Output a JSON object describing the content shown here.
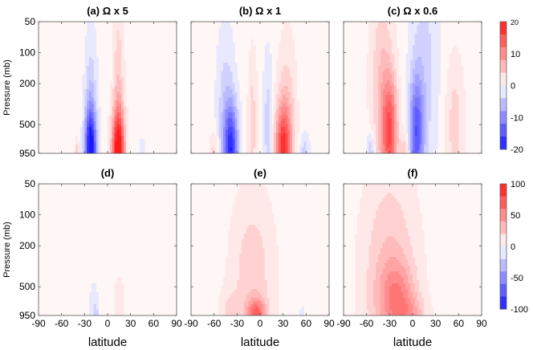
{
  "chart_data": {
    "type": "heatmap",
    "shared": {
      "xlabel": "latitude",
      "ylabel": "Pressure (mb)",
      "x_ticks": [
        "-90",
        "-60",
        "-30",
        "0",
        "30",
        "60",
        "90"
      ],
      "y_ticks": [
        "50",
        "100",
        "200",
        "500",
        "950"
      ],
      "xlim": [
        -90,
        90
      ],
      "ylim": [
        950,
        50
      ],
      "y_scale": "log"
    },
    "panels": [
      {
        "id": "a",
        "title": "(a) Ω x 5",
        "row": 0,
        "colorbar": 0,
        "blobs": [
          {
            "lat": -22,
            "p": 920,
            "width": 7,
            "depth": 0.9,
            "amp": -20
          },
          {
            "lat": -22,
            "p": 400,
            "width": 8,
            "depth": 1.8,
            "amp": -5
          },
          {
            "lat": 14,
            "p": 920,
            "width": 8,
            "depth": 0.9,
            "amp": 20
          },
          {
            "lat": 14,
            "p": 300,
            "width": 7,
            "depth": 2.2,
            "amp": 5
          },
          {
            "lat": -40,
            "p": 900,
            "width": 3,
            "depth": 0.3,
            "amp": 4
          },
          {
            "lat": 45,
            "p": 900,
            "width": 3,
            "depth": 0.3,
            "amp": -3
          }
        ]
      },
      {
        "id": "b",
        "title": "(b) Ω x 1",
        "row": 0,
        "colorbar": 0,
        "blobs": [
          {
            "lat": -38,
            "p": 900,
            "width": 9,
            "depth": 1.0,
            "amp": -17
          },
          {
            "lat": -45,
            "p": 350,
            "width": 12,
            "depth": 1.8,
            "amp": -4
          },
          {
            "lat": 30,
            "p": 900,
            "width": 10,
            "depth": 1.0,
            "amp": 16
          },
          {
            "lat": 35,
            "p": 400,
            "width": 12,
            "depth": 1.8,
            "amp": 4
          },
          {
            "lat": -10,
            "p": 500,
            "width": 6,
            "depth": 1.6,
            "amp": 4
          },
          {
            "lat": 10,
            "p": 500,
            "width": 6,
            "depth": 1.6,
            "amp": -4
          },
          {
            "lat": -60,
            "p": 900,
            "width": 6,
            "depth": 0.4,
            "amp": 4
          },
          {
            "lat": 58,
            "p": 900,
            "width": 6,
            "depth": 0.4,
            "amp": -4
          }
        ]
      },
      {
        "id": "c",
        "title": "(c) Ω x 0.6",
        "row": 0,
        "colorbar": 0,
        "blobs": [
          {
            "lat": -30,
            "p": 600,
            "width": 10,
            "depth": 1.2,
            "amp": 14
          },
          {
            "lat": -40,
            "p": 200,
            "width": 15,
            "depth": 2.2,
            "amp": 5
          },
          {
            "lat": 5,
            "p": 600,
            "width": 9,
            "depth": 1.2,
            "amp": -13
          },
          {
            "lat": 15,
            "p": 150,
            "width": 18,
            "depth": 2.5,
            "amp": -4
          },
          {
            "lat": -55,
            "p": 900,
            "width": 5,
            "depth": 0.4,
            "amp": -6
          },
          {
            "lat": 55,
            "p": 500,
            "width": 12,
            "depth": 1.5,
            "amp": 4
          },
          {
            "lat": -10,
            "p": 900,
            "width": 5,
            "depth": 0.4,
            "amp": 5
          }
        ]
      },
      {
        "id": "d",
        "title": "(d)",
        "row": 1,
        "colorbar": 1,
        "blobs": [
          {
            "lat": -18,
            "p": 800,
            "width": 6,
            "depth": 0.6,
            "amp": -12
          },
          {
            "lat": 15,
            "p": 750,
            "width": 7,
            "depth": 0.7,
            "amp": 12
          },
          {
            "lat": -15,
            "p": 930,
            "width": 2,
            "depth": 0.2,
            "amp": -20
          }
        ]
      },
      {
        "id": "e",
        "title": "(e)",
        "row": 1,
        "colorbar": 1,
        "blobs": [
          {
            "lat": -10,
            "p": 400,
            "width": 28,
            "depth": 1.9,
            "amp": 22
          },
          {
            "lat": -5,
            "p": 930,
            "width": 12,
            "depth": 0.35,
            "amp": 55
          },
          {
            "lat": -40,
            "p": 900,
            "width": 12,
            "depth": 0.5,
            "amp": 15
          },
          {
            "lat": 55,
            "p": 930,
            "width": 3,
            "depth": 0.2,
            "amp": -15
          }
        ]
      },
      {
        "id": "f",
        "title": "(f)",
        "row": 1,
        "colorbar": 1,
        "blobs": [
          {
            "lat": -30,
            "p": 450,
            "width": 35,
            "depth": 2.5,
            "amp": 28
          },
          {
            "lat": -20,
            "p": 650,
            "width": 22,
            "depth": 0.8,
            "amp": 35
          },
          {
            "lat": 0,
            "p": 920,
            "width": 18,
            "depth": 0.4,
            "amp": 20
          }
        ]
      }
    ],
    "colorbars": [
      {
        "ticks": [
          "20",
          "10",
          "0",
          "-10",
          "-20"
        ],
        "range": [
          -20,
          20
        ]
      },
      {
        "ticks": [
          "100",
          "50",
          "0",
          "-50",
          "-100"
        ],
        "range": [
          -100,
          100
        ]
      }
    ]
  }
}
